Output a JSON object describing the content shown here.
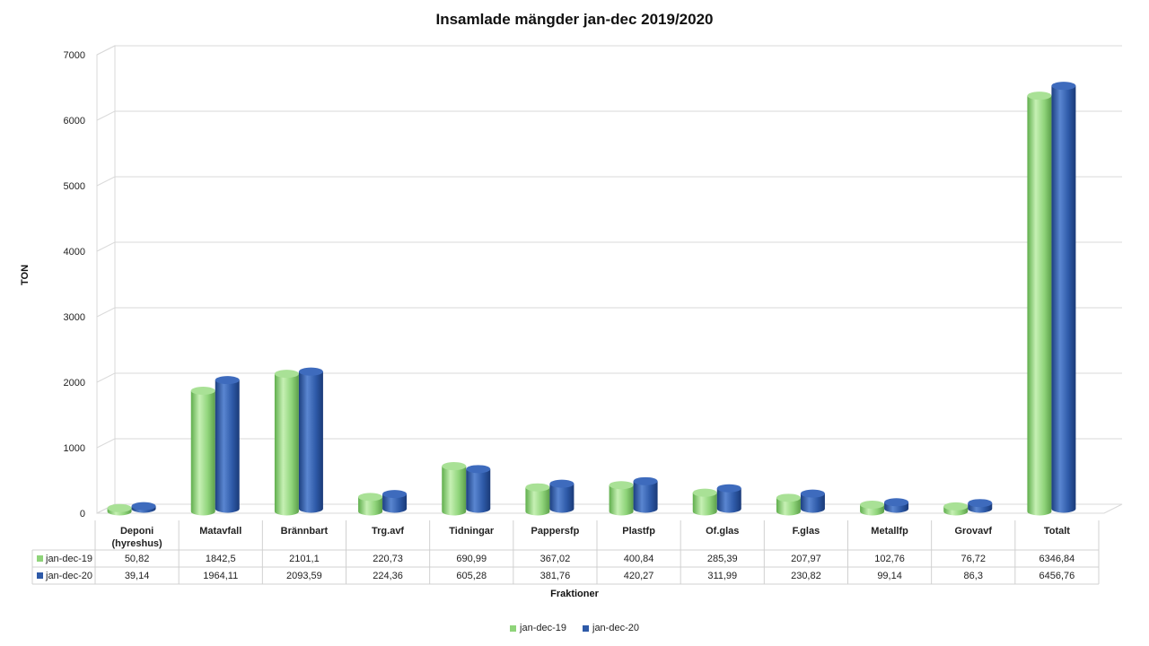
{
  "chart_data": {
    "type": "bar",
    "title": "Insamlade mängder jan-dec 2019/2020",
    "xlabel": "Fraktioner",
    "ylabel": "TON",
    "ylim": [
      0,
      7000
    ],
    "yticks": [
      "0",
      "1000",
      "2000",
      "3000",
      "4000",
      "5000",
      "6000",
      "7000"
    ],
    "grid": true,
    "legend_position": "bottom",
    "categories": [
      "Deponi (hyreshus)",
      "Matavfall",
      "Brännbart",
      "Trg.avf",
      "Tidningar",
      "Pappersfp",
      "Plastfp",
      "Of.glas",
      "F.glas",
      "Metallfp",
      "Grovavf",
      "Totalt"
    ],
    "series": [
      {
        "name": "jan-dec-19",
        "color": "#8fd47a",
        "values": [
          50.82,
          1842.5,
          2101.1,
          220.73,
          690.99,
          367.02,
          400.84,
          285.39,
          207.97,
          102.76,
          76.72,
          6346.84
        ],
        "labels": [
          "50,82",
          "1842,5",
          "2101,1",
          "220,73",
          "690,99",
          "367,02",
          "400,84",
          "285,39",
          "207,97",
          "102,76",
          "76,72",
          "6346,84"
        ]
      },
      {
        "name": "jan-dec-20",
        "color": "#2e5aa8",
        "values": [
          39.14,
          1964.11,
          2093.59,
          224.36,
          605.28,
          381.76,
          420.27,
          311.99,
          230.82,
          99.14,
          86.3,
          6456.76
        ],
        "labels": [
          "39,14",
          "1964,11",
          "2093,59",
          "224,36",
          "605,28",
          "381,76",
          "420,27",
          "311,99",
          "230,82",
          "99,14",
          "86,3",
          "6456,76"
        ]
      }
    ]
  }
}
